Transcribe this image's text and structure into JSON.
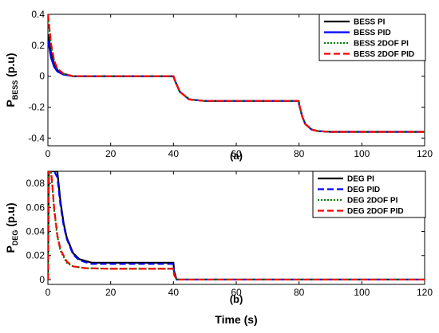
{
  "chart_data": [
    {
      "type": "line",
      "panel_label": "(a)",
      "ylabel_main": "P",
      "ylabel_sub": "BESS",
      "ylabel_unit": "(p.u)",
      "xlabel": "",
      "xlim": [
        0,
        120
      ],
      "ylim": [
        -0.45,
        0.4
      ],
      "xticks": [
        "0",
        "20",
        "40",
        "60",
        "80",
        "100",
        "120"
      ],
      "yticks": [
        "0.4",
        "0.2",
        "0",
        "-0.2",
        "-0.4"
      ],
      "ytick_values": [
        0.4,
        0.2,
        0,
        -0.2,
        -0.4
      ],
      "grid": false,
      "legend_position": "top-right",
      "series": [
        {
          "name": "BESS PI",
          "color": "#000000",
          "dash": "solid",
          "x": [
            0,
            0.5,
            1,
            2,
            3,
            5,
            8,
            20,
            40,
            40.5,
            42,
            45,
            50,
            60,
            79.9,
            80,
            81,
            82,
            84,
            86,
            90,
            120
          ],
          "y": [
            0.27,
            0.22,
            0.15,
            0.08,
            0.04,
            0.015,
            0.0,
            0.0,
            0.0,
            -0.03,
            -0.1,
            -0.15,
            -0.16,
            -0.16,
            -0.16,
            -0.18,
            -0.26,
            -0.31,
            -0.345,
            -0.355,
            -0.36,
            -0.36
          ]
        },
        {
          "name": "BESS PID",
          "color": "#0000ff",
          "dash": "solid",
          "x": [
            0,
            0.5,
            1,
            2,
            3,
            5,
            8,
            20,
            40,
            40.5,
            42,
            45,
            50,
            60,
            79.9,
            80,
            81,
            82,
            84,
            86,
            90,
            120
          ],
          "y": [
            0.23,
            0.18,
            0.12,
            0.06,
            0.03,
            0.01,
            0.0,
            0.0,
            0.0,
            -0.03,
            -0.1,
            -0.15,
            -0.16,
            -0.16,
            -0.16,
            -0.18,
            -0.26,
            -0.31,
            -0.345,
            -0.355,
            -0.36,
            -0.36
          ]
        },
        {
          "name": "BESS 2DOF PI",
          "color": "#008000",
          "dash": "dotted",
          "x": [
            0,
            0.5,
            1,
            2,
            3,
            5,
            8,
            20,
            40,
            40.5,
            42,
            45,
            50,
            60,
            79.9,
            80,
            81,
            82,
            84,
            86,
            90,
            120
          ],
          "y": [
            0.4,
            0.3,
            0.2,
            0.1,
            0.05,
            0.015,
            0.0,
            0.0,
            0.0,
            -0.03,
            -0.1,
            -0.15,
            -0.16,
            -0.16,
            -0.16,
            -0.18,
            -0.26,
            -0.31,
            -0.345,
            -0.355,
            -0.36,
            -0.36
          ]
        },
        {
          "name": "BESS 2DOF PID",
          "color": "#ff0000",
          "dash": "dashed",
          "x": [
            0,
            0.5,
            1,
            2,
            3,
            5,
            8,
            20,
            40,
            40.5,
            42,
            45,
            50,
            60,
            79.9,
            80,
            81,
            82,
            84,
            86,
            90,
            120
          ],
          "y": [
            0.4,
            0.31,
            0.21,
            0.1,
            0.05,
            0.015,
            0.0,
            0.0,
            0.0,
            -0.03,
            -0.1,
            -0.15,
            -0.16,
            -0.16,
            -0.16,
            -0.18,
            -0.26,
            -0.31,
            -0.345,
            -0.355,
            -0.36,
            -0.36
          ]
        }
      ]
    },
    {
      "type": "line",
      "panel_label": "(b)",
      "ylabel_main": "P",
      "ylabel_sub": "DEG",
      "ylabel_unit": "(p.u)",
      "xlabel": "Time (s)",
      "xlim": [
        0,
        120
      ],
      "ylim": [
        -0.004,
        0.09
      ],
      "xticks": [
        "0",
        "20",
        "40",
        "60",
        "80",
        "100",
        "120"
      ],
      "yticks": [
        "0.08",
        "0.06",
        "0.04",
        "0.02",
        "0"
      ],
      "ytick_values": [
        0.08,
        0.06,
        0.04,
        0.02,
        0
      ],
      "grid": false,
      "legend_position": "top-right",
      "series": [
        {
          "name": "DEG PI",
          "color": "#000000",
          "dash": "solid",
          "x": [
            0,
            0.3,
            1,
            2,
            3,
            4,
            5,
            6,
            8,
            10,
            14,
            20,
            40,
            40.2,
            41,
            120
          ],
          "y": [
            0.0,
            0.09,
            0.09,
            0.09,
            0.09,
            0.065,
            0.047,
            0.035,
            0.022,
            0.017,
            0.014,
            0.014,
            0.014,
            0.007,
            0.0,
            0.0
          ]
        },
        {
          "name": "DEG PID",
          "color": "#0000ff",
          "dash": "dashed",
          "x": [
            0,
            0.3,
            1,
            2,
            3,
            4,
            5,
            6,
            8,
            10,
            14,
            20,
            40,
            40.2,
            41,
            120
          ],
          "y": [
            0.0,
            0.09,
            0.09,
            0.09,
            0.085,
            0.062,
            0.045,
            0.034,
            0.021,
            0.016,
            0.013,
            0.013,
            0.013,
            0.006,
            0.0,
            0.0
          ]
        },
        {
          "name": "DEG 2DOF PI",
          "color": "#008000",
          "dash": "dotted",
          "x": [
            0,
            0.2,
            0.5,
            1,
            1.5,
            2,
            3,
            4,
            6,
            8,
            12,
            20,
            40,
            40.2,
            41,
            120
          ],
          "y": [
            0.0,
            0.09,
            0.09,
            0.09,
            0.075,
            0.058,
            0.036,
            0.024,
            0.014,
            0.011,
            0.0095,
            0.009,
            0.009,
            0.004,
            0.0,
            0.0
          ]
        },
        {
          "name": "DEG 2DOF PID",
          "color": "#ff0000",
          "dash": "dashed",
          "x": [
            0,
            0.2,
            0.5,
            1,
            1.5,
            2,
            3,
            4,
            6,
            8,
            12,
            20,
            40,
            40.2,
            41,
            120
          ],
          "y": [
            0.0,
            0.09,
            0.09,
            0.09,
            0.076,
            0.059,
            0.037,
            0.025,
            0.015,
            0.011,
            0.0095,
            0.009,
            0.009,
            0.004,
            0.0,
            0.0
          ]
        }
      ]
    }
  ]
}
